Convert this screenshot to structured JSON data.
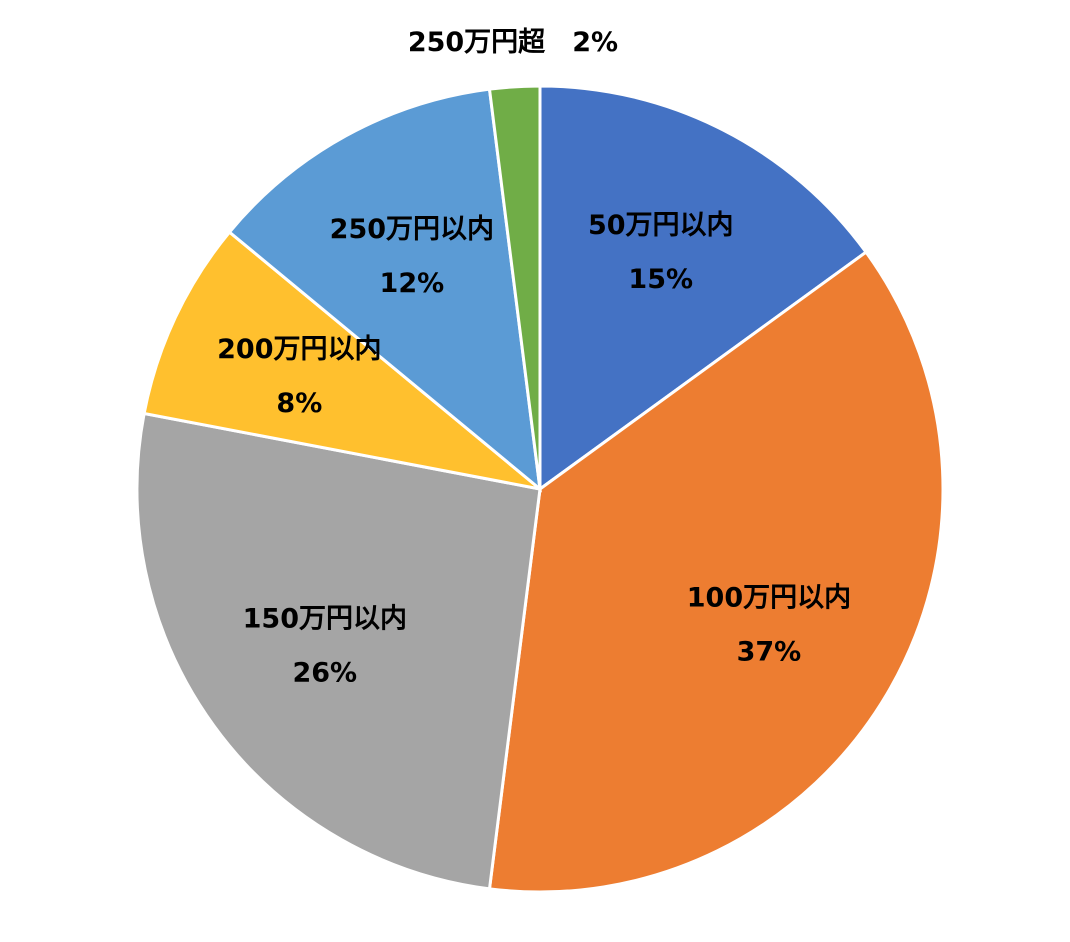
{
  "chart_data": {
    "type": "pie",
    "title": "",
    "start": "top",
    "direction": "clockwise",
    "legend": "none",
    "slices": [
      {
        "label": "50万円以内",
        "value": 15,
        "display": "15%",
        "color": "#4472C4"
      },
      {
        "label": "100万円以内",
        "value": 37,
        "display": "37%",
        "color": "#ED7D31"
      },
      {
        "label": "150万円以内",
        "value": 26,
        "display": "26%",
        "color": "#A5A5A5"
      },
      {
        "label": "200万円以内",
        "value": 8,
        "display": "8%",
        "color": "#FFC02E"
      },
      {
        "label": "250万円以内",
        "value": 12,
        "display": "12%",
        "color": "#5B9BD5"
      },
      {
        "label": "250万円超",
        "value": 2,
        "display": "2%",
        "color": "#70AD47"
      }
    ]
  }
}
